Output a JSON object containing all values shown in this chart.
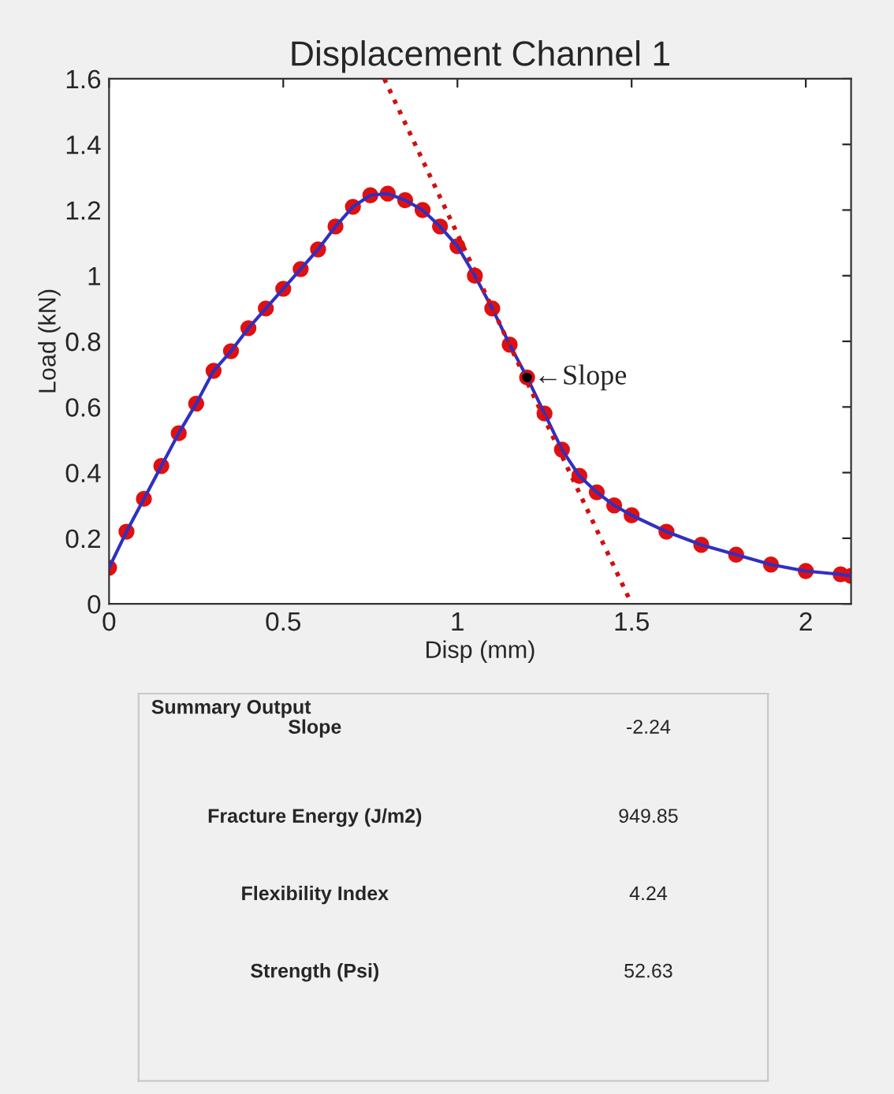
{
  "chart_data": [
    {
      "type": "line",
      "title": "Displacement Channel 1",
      "xlabel": "Disp (mm)",
      "ylabel": "Load (kN)",
      "xlim": [
        0,
        2.13
      ],
      "ylim": [
        0,
        1.6
      ],
      "xticks": [
        0,
        0.5,
        1,
        1.5,
        2
      ],
      "yticks": [
        0,
        0.2,
        0.4,
        0.6,
        0.8,
        1,
        1.2,
        1.4,
        1.6
      ],
      "grid": false,
      "x": [
        0,
        0.05,
        0.1,
        0.15,
        0.2,
        0.25,
        0.3,
        0.35,
        0.4,
        0.45,
        0.5,
        0.55,
        0.6,
        0.65,
        0.7,
        0.75,
        0.8,
        0.85,
        0.9,
        0.95,
        1.0,
        1.05,
        1.1,
        1.15,
        1.2,
        1.25,
        1.3,
        1.35,
        1.4,
        1.45,
        1.5,
        1.6,
        1.7,
        1.8,
        1.9,
        2.0,
        2.1,
        2.13
      ],
      "series": [
        {
          "type": "scatter",
          "color": "#e01010",
          "marker": "circle",
          "values": [
            0.11,
            0.22,
            0.32,
            0.42,
            0.52,
            0.61,
            0.71,
            0.77,
            0.84,
            0.9,
            0.96,
            1.02,
            1.08,
            1.15,
            1.21,
            1.245,
            1.25,
            1.23,
            1.2,
            1.15,
            1.09,
            1.0,
            0.9,
            0.79,
            0.69,
            0.58,
            0.47,
            0.39,
            0.34,
            0.3,
            0.27,
            0.22,
            0.18,
            0.15,
            0.12,
            0.1,
            0.09,
            0.085
          ]
        },
        {
          "type": "line",
          "color": "#3030c0",
          "line_style": "solid",
          "marker": "none",
          "values": [
            0.11,
            0.22,
            0.32,
            0.42,
            0.52,
            0.61,
            0.71,
            0.77,
            0.84,
            0.9,
            0.96,
            1.02,
            1.08,
            1.15,
            1.21,
            1.245,
            1.25,
            1.23,
            1.2,
            1.15,
            1.09,
            1.0,
            0.9,
            0.79,
            0.69,
            0.58,
            0.47,
            0.39,
            0.34,
            0.3,
            0.27,
            0.22,
            0.18,
            0.15,
            0.12,
            0.1,
            0.09,
            0.085
          ]
        },
        {
          "type": "line",
          "color": "#d01010",
          "line_style": "dotted",
          "marker": "none",
          "x": [
            0.79,
            1.5
          ],
          "values": [
            1.6,
            0
          ]
        },
        {
          "type": "scatter",
          "color": "#000000",
          "marker": "circle",
          "x": [
            1.2
          ],
          "values": [
            0.69
          ]
        }
      ],
      "annotations": [
        {
          "text": "←Slope",
          "x": 1.2,
          "y": 0.69
        }
      ]
    },
    {
      "type": "other",
      "title": "Summary Output",
      "annotations": [
        "Slope",
        "-2.24",
        "Fracture Energy (J/m2)",
        "949.85",
        "Flexibility Index",
        "4.24",
        "Strength (Psi)",
        "52.63"
      ]
    }
  ]
}
